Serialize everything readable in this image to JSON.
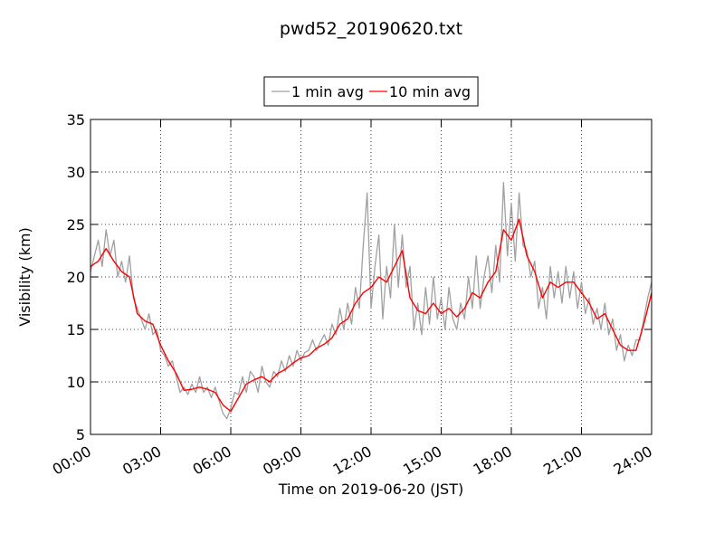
{
  "chart_data": {
    "type": "line",
    "title": "pwd52_20190620.txt",
    "x_label": "Time on 2019-06-20 (JST)",
    "y_label": "Visibility (km)",
    "xlim": [
      0,
      1440
    ],
    "ylim": [
      5,
      35
    ],
    "xticks": [
      {
        "value": 0,
        "label": "00:00"
      },
      {
        "value": 180,
        "label": "03:00"
      },
      {
        "value": 360,
        "label": "06:00"
      },
      {
        "value": 540,
        "label": "09:00"
      },
      {
        "value": 720,
        "label": "12:00"
      },
      {
        "value": 900,
        "label": "15:00"
      },
      {
        "value": 1080,
        "label": "18:00"
      },
      {
        "value": 1260,
        "label": "21:00"
      },
      {
        "value": 1440,
        "label": "24:00"
      }
    ],
    "yticks": [
      5,
      10,
      15,
      20,
      25,
      30,
      35
    ],
    "grid": true,
    "legend": "top-center",
    "series": [
      {
        "name": "1 min avg",
        "color": "#a0a0a0",
        "x": [
          0,
          10,
          20,
          30,
          40,
          50,
          60,
          70,
          80,
          90,
          100,
          110,
          120,
          130,
          140,
          150,
          160,
          170,
          180,
          190,
          200,
          210,
          220,
          230,
          240,
          250,
          260,
          270,
          280,
          290,
          300,
          310,
          320,
          330,
          340,
          350,
          360,
          370,
          380,
          390,
          400,
          410,
          420,
          430,
          440,
          450,
          460,
          470,
          480,
          490,
          500,
          510,
          520,
          530,
          540,
          550,
          560,
          570,
          580,
          590,
          600,
          610,
          620,
          630,
          640,
          650,
          660,
          670,
          680,
          690,
          700,
          710,
          720,
          730,
          740,
          750,
          760,
          770,
          780,
          790,
          800,
          810,
          820,
          830,
          840,
          850,
          860,
          870,
          880,
          890,
          900,
          910,
          920,
          930,
          940,
          950,
          960,
          970,
          980,
          990,
          1000,
          1010,
          1020,
          1030,
          1040,
          1050,
          1060,
          1070,
          1080,
          1090,
          1100,
          1110,
          1120,
          1130,
          1140,
          1150,
          1160,
          1170,
          1180,
          1190,
          1200,
          1210,
          1220,
          1230,
          1240,
          1250,
          1260,
          1270,
          1280,
          1290,
          1300,
          1310,
          1320,
          1330,
          1340,
          1350,
          1360,
          1370,
          1380,
          1390,
          1400,
          1410,
          1420,
          1430,
          1440
        ],
        "values": [
          20.5,
          22,
          23.5,
          21,
          24.5,
          22,
          23.5,
          20,
          21.5,
          19.5,
          22,
          18,
          17,
          16,
          15,
          16.5,
          14.5,
          15,
          13,
          12.5,
          11.5,
          12,
          10.5,
          9,
          9.5,
          8.8,
          9.8,
          9,
          10.5,
          9,
          9.5,
          8.5,
          9.5,
          8.2,
          7,
          6.5,
          7.5,
          9,
          8.8,
          10.5,
          9,
          11,
          10.5,
          9,
          11.5,
          10,
          9.5,
          11,
          10.5,
          12,
          11,
          12.5,
          11.5,
          13,
          12,
          12.8,
          13,
          14,
          13,
          13.8,
          14.5,
          13.5,
          15.5,
          14.5,
          17,
          15,
          17.5,
          15.5,
          19,
          17,
          23,
          28,
          17,
          21,
          24,
          16,
          21,
          18,
          25,
          19,
          24,
          19,
          21,
          15,
          17.5,
          14.5,
          19,
          15.5,
          20,
          16,
          18,
          15,
          19,
          16,
          15,
          17.5,
          16,
          20,
          17,
          22,
          17,
          20,
          22,
          18.5,
          23,
          19.5,
          29,
          22,
          27,
          21.5,
          28,
          23,
          22.5,
          20,
          21.5,
          17,
          19,
          16,
          21,
          18,
          20.5,
          17.5,
          21,
          18,
          20.5,
          17,
          19.5,
          16.5,
          18,
          15.5,
          17,
          15,
          17.5,
          14.5,
          16,
          13,
          14.5,
          12,
          13.5,
          12.5,
          14,
          14,
          16,
          18,
          19.5
        ]
      },
      {
        "name": "10 min avg",
        "color": "#ff0000",
        "x": [
          0,
          20,
          40,
          60,
          80,
          100,
          120,
          140,
          160,
          180,
          200,
          220,
          240,
          260,
          280,
          300,
          320,
          340,
          360,
          380,
          400,
          420,
          440,
          460,
          480,
          500,
          520,
          540,
          560,
          580,
          600,
          620,
          640,
          660,
          680,
          700,
          720,
          740,
          760,
          780,
          800,
          820,
          840,
          860,
          880,
          900,
          920,
          940,
          960,
          980,
          1000,
          1020,
          1040,
          1060,
          1080,
          1100,
          1120,
          1140,
          1160,
          1180,
          1200,
          1220,
          1240,
          1260,
          1280,
          1300,
          1320,
          1340,
          1360,
          1380,
          1400,
          1420,
          1440
        ],
        "values": [
          21,
          21.5,
          22.7,
          21.5,
          20.5,
          20,
          16.5,
          15.8,
          15.5,
          13.5,
          12,
          10.8,
          9.2,
          9.3,
          9.5,
          9.3,
          9,
          7.8,
          7.2,
          8.5,
          9.8,
          10.2,
          10.5,
          10,
          10.8,
          11.2,
          11.8,
          12.3,
          12.5,
          13.2,
          13.6,
          14.2,
          15.5,
          16,
          17.5,
          18.5,
          19,
          20,
          19.5,
          21,
          22.5,
          18,
          16.8,
          16.5,
          17.5,
          16.5,
          17,
          16.2,
          17,
          18.5,
          18,
          19.5,
          20.5,
          24.5,
          23.5,
          25.5,
          22,
          20.5,
          18,
          19.5,
          19,
          19.5,
          19.5,
          18.5,
          17.5,
          16,
          16.5,
          15,
          13.5,
          13,
          13,
          15.5,
          18.5
        ]
      }
    ]
  }
}
